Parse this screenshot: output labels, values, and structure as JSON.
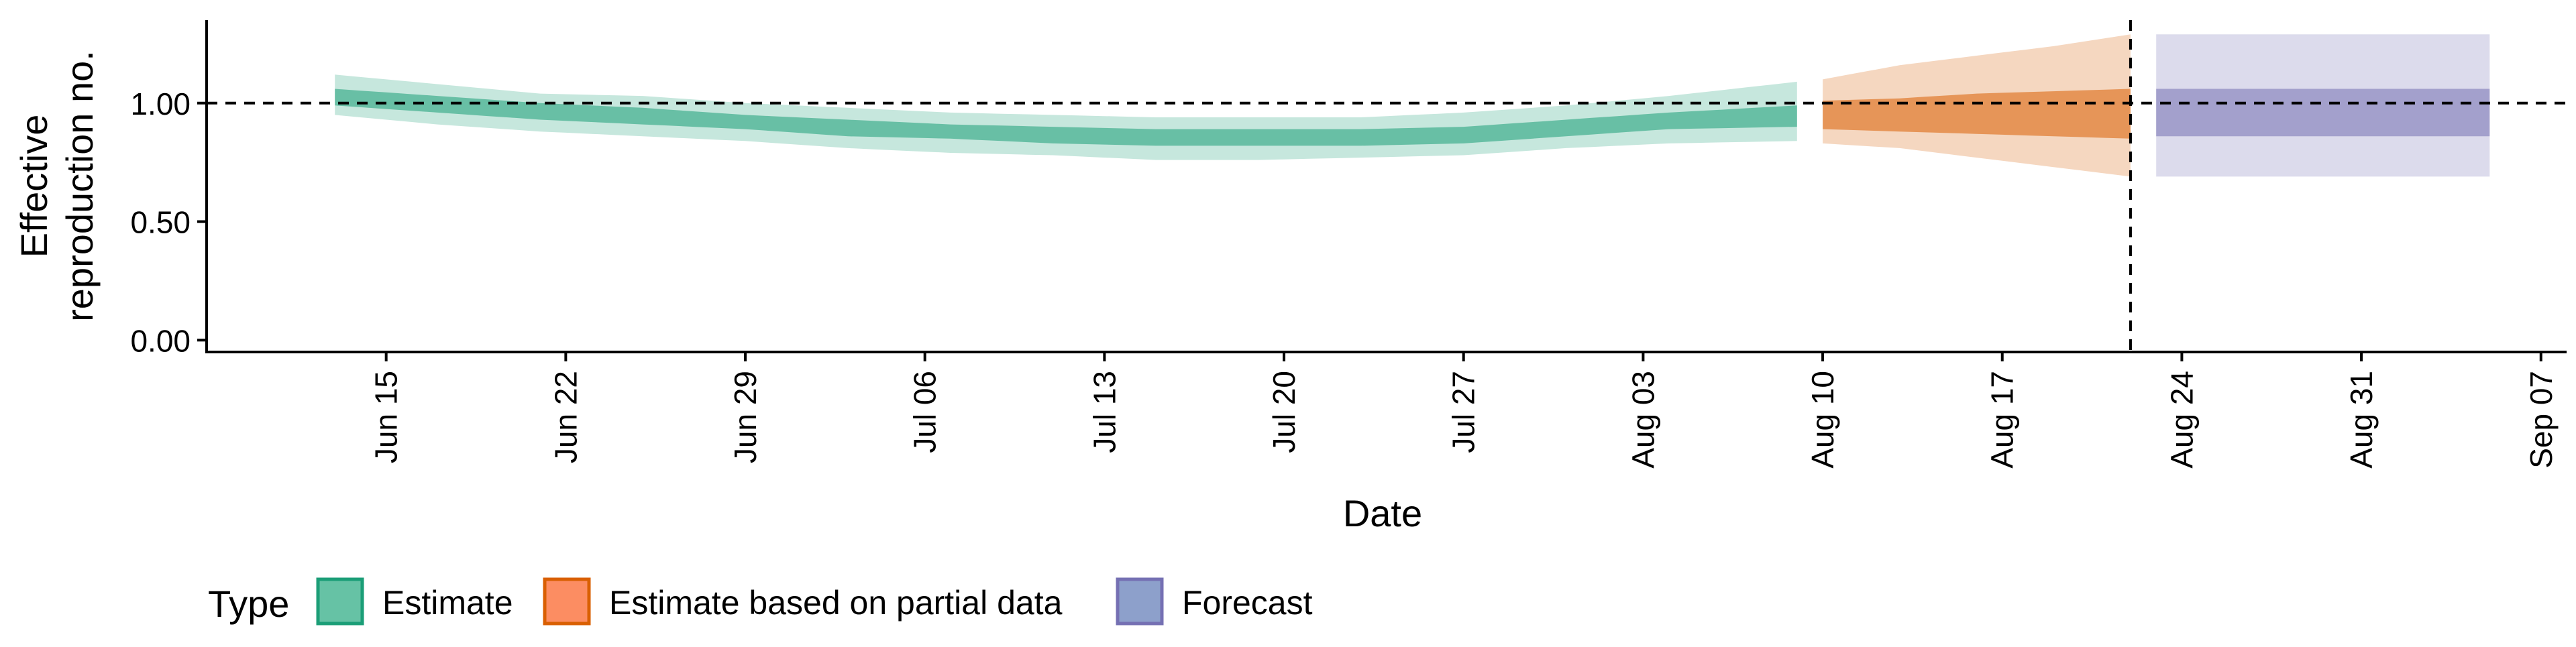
{
  "chart_data": {
    "type": "area",
    "xlabel": "Date",
    "ylabel_lines": [
      "Effective",
      "reproduction no."
    ],
    "y_ticks": [
      0.0,
      0.5,
      1.0
    ],
    "y_tick_labels": [
      "0.00",
      "0.50",
      "1.00"
    ],
    "ylim": [
      -0.05,
      1.35
    ],
    "xlim": [
      "2020-06-08",
      "2020-09-08"
    ],
    "x_ticks": [
      "2020-06-15",
      "2020-06-22",
      "2020-06-29",
      "2020-07-06",
      "2020-07-13",
      "2020-07-20",
      "2020-07-27",
      "2020-08-03",
      "2020-08-10",
      "2020-08-17",
      "2020-08-24",
      "2020-08-31",
      "2020-09-07"
    ],
    "x_tick_labels": [
      "Jun 15",
      "Jun 22",
      "Jun 29",
      "Jul 06",
      "Jul 13",
      "Jul 20",
      "Jul 27",
      "Aug 03",
      "Aug 10",
      "Aug 17",
      "Aug 24",
      "Aug 31",
      "Sep 07"
    ],
    "reference_hline": 1.0,
    "reference_vline": "2020-08-22",
    "legend": {
      "title": "Type",
      "position": "bottom",
      "entries": [
        {
          "label": "Estimate",
          "fill": "#66c2a5",
          "stroke": "#1b9e77"
        },
        {
          "label": "Estimate based on partial data",
          "fill": "#fc8d62",
          "stroke": "#d95f02"
        },
        {
          "label": "Forecast",
          "fill": "#8da0cb",
          "stroke": "#7570b3"
        }
      ]
    },
    "series": [
      {
        "type": "Estimate",
        "color": "#1b9e77",
        "x": [
          "2020-06-13",
          "2020-06-17",
          "2020-06-21",
          "2020-06-25",
          "2020-06-29",
          "2020-07-03",
          "2020-07-07",
          "2020-07-11",
          "2020-07-15",
          "2020-07-19",
          "2020-07-23",
          "2020-07-27",
          "2020-07-31",
          "2020-08-04",
          "2020-08-09"
        ],
        "median": [
          1.03,
          1.0,
          0.97,
          0.95,
          0.92,
          0.9,
          0.88,
          0.87,
          0.86,
          0.85,
          0.86,
          0.87,
          0.9,
          0.93,
          0.95
        ],
        "lower_50": [
          0.99,
          0.96,
          0.93,
          0.91,
          0.89,
          0.86,
          0.85,
          0.83,
          0.82,
          0.82,
          0.82,
          0.83,
          0.86,
          0.89,
          0.9
        ],
        "upper_50": [
          1.06,
          1.03,
          1.0,
          0.98,
          0.95,
          0.93,
          0.91,
          0.9,
          0.89,
          0.89,
          0.89,
          0.9,
          0.93,
          0.96,
          0.99
        ],
        "lower_90": [
          0.95,
          0.91,
          0.88,
          0.86,
          0.84,
          0.81,
          0.79,
          0.78,
          0.76,
          0.76,
          0.77,
          0.78,
          0.81,
          0.83,
          0.84
        ],
        "upper_90": [
          1.12,
          1.08,
          1.04,
          1.03,
          1.0,
          0.98,
          0.96,
          0.95,
          0.94,
          0.94,
          0.94,
          0.96,
          0.99,
          1.03,
          1.09
        ]
      },
      {
        "type": "Estimate based on partial data",
        "color": "#d95f02",
        "x": [
          "2020-08-10",
          "2020-08-13",
          "2020-08-16",
          "2020-08-19",
          "2020-08-22"
        ],
        "median": [
          0.95,
          0.95,
          0.95,
          0.95,
          0.94
        ],
        "lower_50": [
          0.89,
          0.88,
          0.87,
          0.86,
          0.85
        ],
        "upper_50": [
          1.01,
          1.02,
          1.04,
          1.05,
          1.06
        ],
        "lower_90": [
          0.83,
          0.81,
          0.77,
          0.73,
          0.69
        ],
        "upper_90": [
          1.1,
          1.16,
          1.2,
          1.24,
          1.29
        ]
      },
      {
        "type": "Forecast",
        "color": "#7570b3",
        "x": [
          "2020-08-23",
          "2020-09-05"
        ],
        "median": [
          0.96,
          0.96
        ],
        "lower_50": [
          0.86,
          0.86
        ],
        "upper_50": [
          1.06,
          1.06
        ],
        "lower_90": [
          0.69,
          0.69
        ],
        "upper_90": [
          1.29,
          1.29
        ]
      }
    ]
  }
}
